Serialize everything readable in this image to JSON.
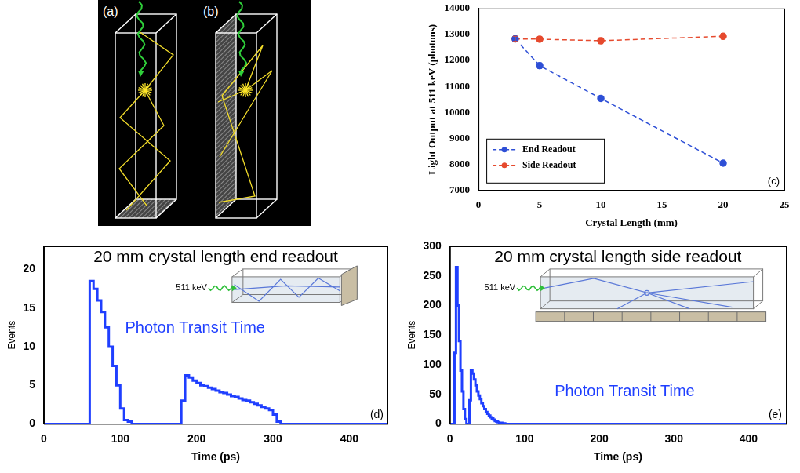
{
  "diagrams": [
    {
      "label": "(a)"
    },
    {
      "label": "(b)"
    }
  ],
  "chart_data": [
    {
      "type": "line",
      "panel_label": "(c)",
      "x_label": "Crystal Length (mm)",
      "y_label": "Light Output at 511 keV (photons)",
      "x": [
        3,
        5,
        10,
        20
      ],
      "series": [
        {
          "name": "End Readout",
          "color": "#2e4fd6",
          "values": [
            12830,
            11800,
            10540,
            8050
          ],
          "errors": [
            100,
            100,
            90,
            80
          ],
          "marker": "circle",
          "line_style": "dashed"
        },
        {
          "name": "Side Readout",
          "color": "#e64a2e",
          "values": [
            12830,
            12820,
            12760,
            12930
          ],
          "errors": [
            100,
            100,
            110,
            110
          ],
          "marker": "circle",
          "line_style": "dashed"
        }
      ],
      "xlim": [
        0,
        25
      ],
      "xticks": [
        0,
        5,
        10,
        15,
        20,
        25
      ],
      "ylim": [
        7000,
        14000
      ],
      "yticks": [
        7000,
        8000,
        9000,
        10000,
        11000,
        12000,
        13000,
        14000
      ],
      "grid": false,
      "legend": "lower left"
    },
    {
      "type": "histogram",
      "title": "20 mm crystal length end readout",
      "annotations": [
        "Photon Transit Time"
      ],
      "inset_label": "511 keV",
      "panel_label": "(d)",
      "x_label": "Time (ps)",
      "y_label": "Events",
      "color": "#1f3fff",
      "bins": [
        0,
        5,
        10,
        15,
        20,
        25,
        30,
        35,
        40,
        45,
        50,
        55,
        60,
        65,
        70,
        75,
        80,
        85,
        90,
        95,
        100,
        105,
        110,
        115,
        120,
        125,
        130,
        135,
        140,
        145,
        150,
        155,
        160,
        165,
        170,
        175,
        180,
        185,
        190,
        195,
        200,
        205,
        210,
        215,
        220,
        225,
        230,
        235,
        240,
        245,
        250,
        255,
        260,
        265,
        270,
        275,
        280,
        285,
        290,
        295,
        300,
        305,
        310,
        315,
        320,
        325,
        330,
        335,
        340,
        345,
        350,
        355,
        360,
        365,
        370,
        375,
        380,
        385,
        390,
        395,
        400,
        405,
        410,
        415,
        420,
        425,
        430,
        435,
        440,
        445,
        450
      ],
      "counts": [
        0,
        0,
        0,
        0,
        0,
        0,
        0,
        0,
        0,
        0,
        0,
        0,
        18.5,
        17.5,
        16,
        14.5,
        12.5,
        10,
        7.5,
        5,
        2,
        0.5,
        0.3,
        0,
        0,
        0,
        0,
        0,
        0,
        0,
        0,
        0,
        0,
        0,
        0,
        0,
        3,
        6.3,
        6,
        5.6,
        5.3,
        5,
        4.9,
        4.7,
        4.5,
        4.3,
        4.1,
        4,
        3.8,
        3.6,
        3.5,
        3.3,
        3.1,
        3,
        2.8,
        2.6,
        2.4,
        2.2,
        2,
        1.8,
        1.2,
        0.3,
        0,
        0,
        0,
        0,
        0,
        0,
        0,
        0,
        0,
        0,
        0,
        0,
        0,
        0,
        0,
        0,
        0,
        0,
        0,
        0,
        0,
        0,
        0,
        0,
        0,
        0,
        0,
        0
      ],
      "xlim": [
        0,
        450
      ],
      "xticks": [
        0,
        100,
        200,
        300,
        400
      ],
      "ylim": [
        0,
        23
      ],
      "yticks": [
        0,
        5,
        10,
        15,
        20
      ],
      "grid": false
    },
    {
      "type": "histogram",
      "title": "20 mm crystal length side readout",
      "annotations": [
        "Photon Transit Time"
      ],
      "inset_label": "511 keV",
      "panel_label": "(e)",
      "x_label": "Time (ps)",
      "y_label": "Events",
      "color": "#1f3fff",
      "bins": [
        0,
        2,
        4,
        6,
        8,
        10,
        12,
        14,
        16,
        18,
        20,
        22,
        24,
        26,
        28,
        30,
        32,
        34,
        36,
        38,
        40,
        42,
        44,
        46,
        48,
        50,
        52,
        54,
        56,
        58,
        60,
        62,
        64,
        66,
        68,
        70,
        72,
        74,
        76,
        450
      ],
      "counts": [
        0,
        0,
        0,
        120,
        265,
        200,
        140,
        90,
        55,
        25,
        8,
        0,
        0,
        40,
        90,
        85,
        75,
        65,
        55,
        48,
        42,
        35,
        30,
        25,
        20,
        17,
        14,
        11,
        9,
        7,
        5,
        4,
        3,
        2,
        2,
        1,
        1,
        0,
        0
      ],
      "xlim": [
        0,
        450
      ],
      "xticks": [
        0,
        100,
        200,
        300,
        400
      ],
      "ylim": [
        0,
        300
      ],
      "yticks": [
        0,
        50,
        100,
        150,
        200,
        250,
        300
      ],
      "grid": false
    }
  ]
}
